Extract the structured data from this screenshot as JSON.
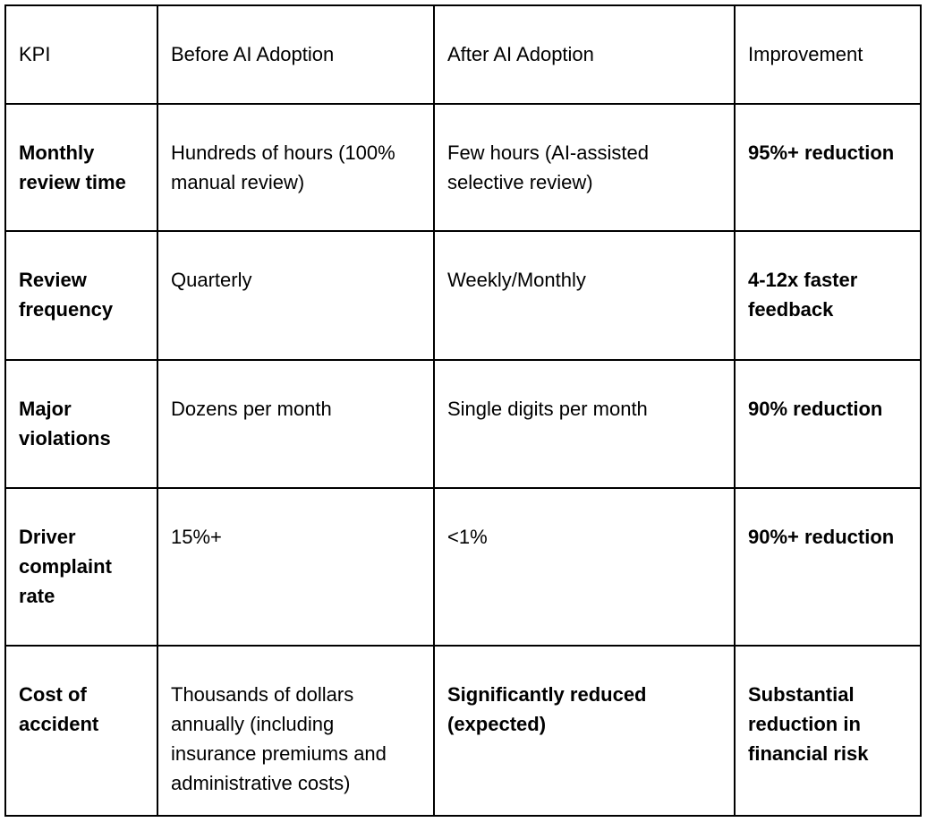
{
  "table": {
    "columns": [
      {
        "label": "KPI"
      },
      {
        "label": "Before AI Adoption"
      },
      {
        "label": "After AI Adoption"
      },
      {
        "label": "Improvement"
      }
    ],
    "rows": [
      {
        "kpi": "Monthly review time",
        "before": "Hundreds of hours (100% manual review)",
        "after": "Few hours (AI-assisted selective review)",
        "improvement": "95%+ reduction"
      },
      {
        "kpi": "Review frequency",
        "before": "Quarterly",
        "after": "Weekly/Monthly",
        "improvement": "4-12x faster feedback"
      },
      {
        "kpi": "Major violations",
        "before": "Dozens per month",
        "after": "Single digits per month",
        "improvement": "90% reduction"
      },
      {
        "kpi": "Driver complaint rate",
        "before": "15%+",
        "after": "<1%",
        "improvement": "90%+ reduction"
      },
      {
        "kpi": "Cost of accident",
        "before": "Thousands of dollars annually (including insurance premiums and administrative costs)",
        "after": "Significantly reduced (expected)",
        "improvement": "Substantial reduction in financial risk"
      }
    ]
  },
  "colors": {
    "border": "#000000",
    "text": "#000000",
    "background": "#ffffff"
  }
}
